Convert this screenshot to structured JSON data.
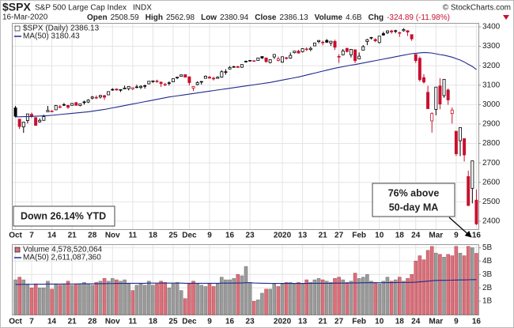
{
  "header": {
    "symbol": "$SPX",
    "name": "S&P 500 Large Cap Index",
    "exchange": "INDX",
    "watermark": "© StockCharts.com",
    "date": "16-Mar-2020",
    "quote": [
      {
        "label": "Open",
        "value": 2508.59
      },
      {
        "label": "High",
        "value": 2562.98
      },
      {
        "label": "Low",
        "value": 2380.94
      },
      {
        "label": "Close",
        "value": 2386.13
      },
      {
        "label": "Volume",
        "value": "4.6B"
      },
      {
        "label": "Chg",
        "value": "-324.89 (-11.98%)"
      }
    ]
  },
  "chart_data": [
    {
      "type": "candlestick",
      "legend": "$SPX (Daily) 2386.13",
      "annotations": [
        "Down 26.14% YTD",
        "76% above",
        "50-day MA"
      ],
      "up_color": "#000000",
      "down_color": "#c8102e",
      "categories": [
        "Oct",
        null,
        null,
        null,
        "7",
        null,
        null,
        null,
        null,
        "14",
        null,
        null,
        null,
        null,
        "21",
        null,
        null,
        null,
        null,
        "28",
        null,
        null,
        null,
        null,
        "Nov",
        null,
        null,
        null,
        null,
        "11",
        null,
        null,
        null,
        null,
        "18",
        null,
        null,
        null,
        null,
        "25",
        null,
        null,
        null,
        "Dec",
        null,
        null,
        null,
        null,
        "9",
        null,
        null,
        null,
        null,
        "16",
        null,
        null,
        null,
        null,
        "23",
        null,
        null,
        null,
        null,
        null,
        null,
        null,
        "2020",
        null,
        null,
        null,
        null,
        "13",
        null,
        null,
        null,
        null,
        "21",
        null,
        null,
        null,
        "27",
        null,
        null,
        null,
        null,
        "Feb",
        null,
        null,
        null,
        null,
        "10",
        null,
        null,
        null,
        null,
        "18",
        null,
        null,
        null,
        "24",
        null,
        null,
        null,
        null,
        "Mar",
        null,
        null,
        null,
        null,
        "9",
        null,
        null,
        null,
        null,
        "16"
      ],
      "open": [
        2983,
        2925,
        2885,
        2918,
        2950,
        2933,
        2911,
        2919,
        2963,
        2965,
        2973,
        2989,
        3000,
        2996,
        2996,
        3010,
        2995,
        3014,
        3013,
        3033,
        3037,
        3039,
        3046,
        3050,
        3078,
        3080,
        3076,
        3081,
        3082,
        3081,
        3090,
        3088,
        3097,
        3107,
        3118,
        3121,
        3115,
        3101,
        3112,
        3117,
        3137,
        3145,
        3154,
        3143,
        3085,
        3103,
        3119,
        3135,
        3141,
        3136,
        3135,
        3141,
        3166,
        3183,
        3195,
        3195,
        3192,
        3223,
        3227,
        3226,
        3227,
        3247,
        3240,
        3216,
        3245,
        3227,
        3218,
        3241,
        3239,
        3267,
        3275,
        3272,
        3286,
        3283,
        3302,
        3324,
        3321,
        3330,
        3316,
        3325,
        3248,
        3256,
        3289,
        3256,
        3282,
        3235,
        3280,
        3324,
        3345,
        3335,
        3319,
        3365,
        3370,
        3379,
        3378,
        3370,
        3380,
        3380,
        3360,
        3258,
        3238,
        3139,
        3063,
        2916,
        2975,
        3096,
        3046,
        3075,
        2954,
        2863,
        2814,
        2825,
        2630,
        2569,
        2508.59
      ],
      "high": [
        2993,
        2925,
        2911,
        2953,
        2959,
        2935,
        2929,
        2948,
        2993,
        2972,
        2998,
        2998,
        3008,
        2998,
        3008,
        3014,
        3005,
        3020,
        3028,
        3044,
        3047,
        3050,
        3050,
        3067,
        3084,
        3083,
        3079,
        3097,
        3093,
        3088,
        3102,
        3099,
        3103,
        3121,
        3124,
        3128,
        3119,
        3112,
        3119,
        3134,
        3142,
        3154,
        3155,
        3144,
        3095,
        3120,
        3120,
        3150,
        3148,
        3143,
        3145,
        3176,
        3182,
        3198,
        3199,
        3199,
        3207,
        3226,
        3228,
        3227,
        3240,
        3248,
        3241,
        3232,
        3258,
        3247,
        3247,
        3245,
        3268,
        3276,
        3282,
        3288,
        3294,
        3298,
        3317,
        3330,
        3329,
        3337,
        3327,
        3334,
        3259,
        3286,
        3293,
        3286,
        3282,
        3268,
        3306,
        3338,
        3348,
        3341,
        3353,
        3375,
        3382,
        3385,
        3385,
        3375,
        3393,
        3382,
        3360,
        3259,
        3247,
        3157,
        3097,
        2960,
        3090,
        3136,
        3130,
        3083,
        2985,
        2863,
        2882,
        2825,
        2660,
        2711,
        2562.98
      ],
      "low": [
        2934,
        2874,
        2855,
        2903,
        2931,
        2893,
        2907,
        2917,
        2963,
        2962,
        2973,
        2981,
        2993,
        2978,
        2995,
        2995,
        2991,
        3000,
        3008,
        3027,
        3028,
        3031,
        3024,
        3050,
        3071,
        3072,
        3065,
        3080,
        3073,
        3075,
        3084,
        3080,
        3082,
        3104,
        3112,
        3112,
        3091,
        3095,
        3098,
        3117,
        3131,
        3143,
        3139,
        3099,
        3070,
        3099,
        3103,
        3134,
        3135,
        3124,
        3133,
        3138,
        3154,
        3181,
        3190,
        3189,
        3189,
        3216,
        3222,
        3220,
        3227,
        3235,
        3216,
        3212,
        3235,
        3222,
        3215,
        3232,
        3236,
        3263,
        3263,
        3268,
        3276,
        3275,
        3302,
        3315,
        3305,
        3317,
        3302,
        3281,
        3214,
        3253,
        3268,
        3242,
        3214,
        3234,
        3280,
        3306,
        3335,
        3321,
        3315,
        3354,
        3363,
        3365,
        3367,
        3348,
        3375,
        3353,
        3328,
        3214,
        3118,
        3108,
        2977,
        2856,
        2945,
        2976,
        3035,
        2999,
        2902,
        2735,
        2735,
        2707,
        2478,
        2492,
        2380.94
      ],
      "close": [
        2940,
        2887,
        2910,
        2952,
        2939,
        2893,
        2919,
        2938,
        2970,
        2966,
        2995,
        2989,
        2997,
        2986,
        3006,
        2996,
        3004,
        3010,
        3023,
        3039,
        3036,
        3047,
        3038,
        3067,
        3078,
        3075,
        3077,
        3085,
        3093,
        3087,
        3091,
        3094,
        3097,
        3120,
        3122,
        3120,
        3108,
        3104,
        3110,
        3133,
        3141,
        3153,
        3141,
        3113,
        3093,
        3113,
        3117,
        3146,
        3136,
        3132,
        3141,
        3169,
        3169,
        3191,
        3192,
        3191,
        3206,
        3221,
        3224,
        3223,
        3240,
        3240,
        3221,
        3231,
        3258,
        3235,
        3246,
        3237,
        3253,
        3275,
        3265,
        3288,
        3283,
        3289,
        3317,
        3330,
        3321,
        3321,
        3326,
        3295,
        3244,
        3276,
        3273,
        3284,
        3226,
        3249,
        3298,
        3334,
        3345,
        3328,
        3352,
        3358,
        3379,
        3374,
        3380,
        3370,
        3386,
        3373,
        3338,
        3226,
        3128,
        3116,
        2979,
        2954,
        3090,
        3003,
        3130,
        3024,
        2972,
        2747,
        2882,
        2741,
        2481,
        2711,
        2386.13
      ],
      "series": [
        {
          "name": "MA(50) 3180.43",
          "color": "#1f2a8c",
          "values": [
            2937,
            2937,
            2938,
            2938,
            2939,
            2940,
            2941,
            2942,
            2943,
            2945,
            2947,
            2949,
            2951,
            2953,
            2955,
            2957,
            2959,
            2961,
            2963,
            2966,
            2969,
            2972,
            2975,
            2979,
            2983,
            2987,
            2991,
            2995,
            2999,
            3003,
            3007,
            3011,
            3015,
            3019,
            3023,
            3027,
            3031,
            3035,
            3039,
            3042,
            3045,
            3048,
            3051,
            3054,
            3057,
            3060,
            3063,
            3066,
            3069,
            3072,
            3075,
            3078,
            3081,
            3084,
            3087,
            3090,
            3093,
            3096,
            3099,
            3102,
            3105,
            3108,
            3111,
            3114,
            3118,
            3122,
            3126,
            3130,
            3134,
            3138,
            3142,
            3147,
            3152,
            3157,
            3162,
            3167,
            3172,
            3177,
            3182,
            3187,
            3191,
            3195,
            3199,
            3203,
            3206,
            3210,
            3214,
            3218,
            3222,
            3226,
            3230,
            3234,
            3238,
            3242,
            3246,
            3250,
            3254,
            3258,
            3262,
            3264,
            3266,
            3268,
            3267,
            3265,
            3261,
            3257,
            3254,
            3249,
            3244,
            3236,
            3229,
            3219,
            3207,
            3196,
            3180.43
          ]
        }
      ],
      "ylim": [
        2359,
        3416
      ],
      "yticks": [
        2400,
        2500,
        2600,
        2700,
        2800,
        2900,
        3000,
        3100,
        3200,
        3300,
        3400
      ],
      "grid": true
    },
    {
      "type": "bar",
      "legend": "Volume 4,578,520,064",
      "down_color": "#d9707a",
      "up_color": "#9a9a9a",
      "values": [
        2.6,
        2.8,
        2.6,
        2.3,
        2.0,
        2.3,
        2.0,
        2.0,
        2.5,
        1.9,
        2.3,
        2.2,
        2.3,
        2.5,
        2.2,
        2.3,
        2.3,
        2.4,
        2.3,
        2.2,
        2.4,
        2.5,
        2.7,
        2.5,
        2.7,
        2.6,
        2.5,
        2.6,
        2.3,
        1.8,
        2.2,
        2.3,
        2.2,
        2.5,
        2.2,
        2.3,
        2.5,
        2.4,
        2.0,
        2.3,
        2.4,
        1.8,
        1.2,
        2.3,
        2.5,
        2.3,
        2.2,
        2.1,
        2.3,
        2.1,
        2.3,
        2.8,
        2.6,
        2.6,
        2.7,
        3.0,
        2.9,
        3.6,
        2.4,
        1.0,
        1.1,
        1.6,
        1.9,
        1.9,
        2.3,
        2.1,
        2.3,
        2.4,
        2.4,
        2.3,
        2.4,
        2.3,
        2.6,
        2.4,
        2.6,
        2.7,
        2.6,
        2.5,
        2.4,
        2.7,
        2.8,
        2.6,
        2.4,
        2.5,
        3.1,
        2.7,
        2.8,
        3.0,
        2.5,
        2.4,
        2.3,
        2.5,
        2.8,
        2.5,
        2.6,
        2.8,
        2.5,
        2.7,
        3.0,
        4.0,
        4.4,
        4.1,
        4.8,
        5.1,
        4.6,
        4.5,
        4.3,
        4.5,
        4.4,
        5.1,
        4.6,
        4.4,
        5.1,
        5.0,
        4.58
      ],
      "series": [
        {
          "name": "MA(50) 2,611,087,360",
          "color": "#1f2a8c",
          "values": [
            2.25,
            2.25,
            2.26,
            2.26,
            2.26,
            2.27,
            2.27,
            2.27,
            2.28,
            2.28,
            2.28,
            2.28,
            2.29,
            2.29,
            2.29,
            2.29,
            2.3,
            2.3,
            2.3,
            2.3,
            2.31,
            2.31,
            2.31,
            2.32,
            2.32,
            2.33,
            2.33,
            2.33,
            2.34,
            2.34,
            2.34,
            2.34,
            2.34,
            2.35,
            2.35,
            2.35,
            2.35,
            2.35,
            2.35,
            2.35,
            2.35,
            2.35,
            2.34,
            2.34,
            2.34,
            2.34,
            2.34,
            2.34,
            2.34,
            2.34,
            2.34,
            2.35,
            2.35,
            2.35,
            2.35,
            2.36,
            2.36,
            2.38,
            2.38,
            2.36,
            2.35,
            2.34,
            2.34,
            2.33,
            2.33,
            2.33,
            2.33,
            2.33,
            2.33,
            2.33,
            2.33,
            2.33,
            2.33,
            2.34,
            2.34,
            2.34,
            2.34,
            2.34,
            2.34,
            2.35,
            2.35,
            2.35,
            2.35,
            2.36,
            2.37,
            2.37,
            2.38,
            2.38,
            2.38,
            2.38,
            2.38,
            2.38,
            2.39,
            2.39,
            2.39,
            2.4,
            2.4,
            2.4,
            2.41,
            2.42,
            2.45,
            2.47,
            2.5,
            2.53,
            2.55,
            2.56,
            2.56,
            2.57,
            2.57,
            2.58,
            2.59,
            2.59,
            2.6,
            2.61,
            2.61
          ]
        }
      ],
      "ylim": [
        0,
        5.2
      ],
      "yticks": [
        {
          "value": 1,
          "label": "1B"
        },
        {
          "value": 2,
          "label": "2B"
        },
        {
          "value": 3,
          "label": "3B"
        },
        {
          "value": 4,
          "label": "4B"
        },
        {
          "value": 5,
          "label": "5B"
        }
      ],
      "grid": true
    }
  ]
}
